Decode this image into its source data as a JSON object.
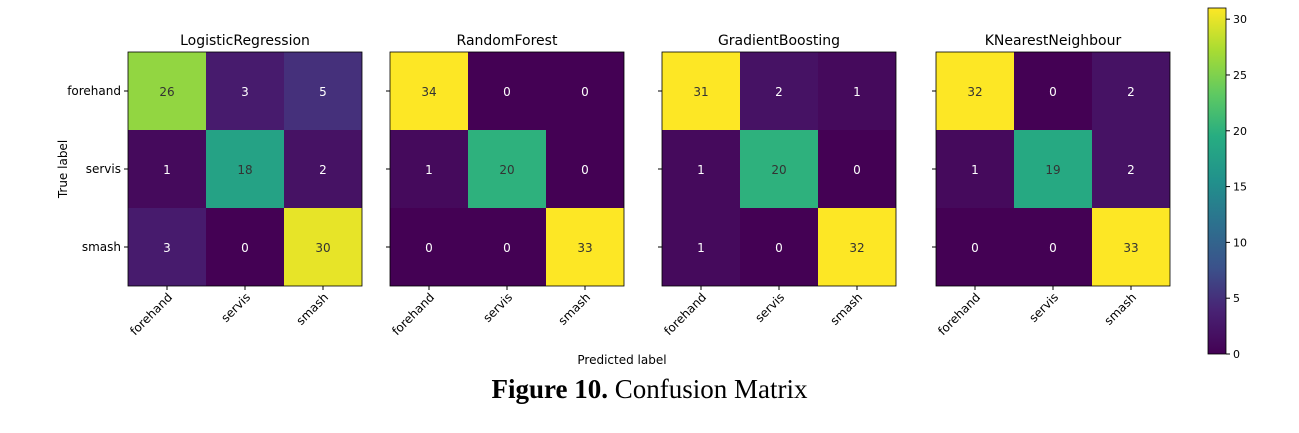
{
  "chart_data": {
    "type": "heatmap",
    "title": "",
    "xlabel": "Predicted label",
    "ylabel": "True label",
    "labels": [
      "forehand",
      "servis",
      "smash"
    ],
    "colorbar": {
      "min": 0,
      "max": 31,
      "ticks": [
        0,
        5,
        10,
        15,
        20,
        25,
        30
      ],
      "colormap": "viridis"
    },
    "panels": [
      {
        "title": "LogisticRegression",
        "matrix": [
          [
            26,
            3,
            5
          ],
          [
            1,
            18,
            2
          ],
          [
            3,
            0,
            30
          ]
        ]
      },
      {
        "title": "RandomForest",
        "matrix": [
          [
            34,
            0,
            0
          ],
          [
            1,
            20,
            0
          ],
          [
            0,
            0,
            33
          ]
        ]
      },
      {
        "title": "GradientBoosting",
        "matrix": [
          [
            31,
            2,
            1
          ],
          [
            1,
            20,
            0
          ],
          [
            1,
            0,
            32
          ]
        ]
      },
      {
        "title": "KNearestNeighbour",
        "matrix": [
          [
            32,
            0,
            2
          ],
          [
            1,
            19,
            2
          ],
          [
            0,
            0,
            33
          ]
        ]
      }
    ]
  },
  "caption": {
    "label": "Figure 10.",
    "text": "Confusion Matrix"
  }
}
